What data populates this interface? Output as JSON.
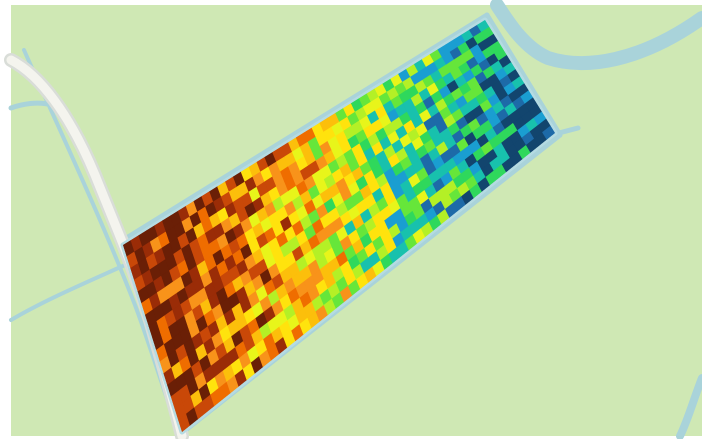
{
  "map": {
    "colors": {
      "background": "#ffffff",
      "land": "#cfe8b4",
      "water": "#a9d3da",
      "water_edge": "#b4d9df",
      "road_casing": "#d9ddd8",
      "road": "#f4f4ee",
      "field_border": "#b5dbe2"
    },
    "field": {
      "label": "yield-heatmap",
      "grid_cols": 46,
      "grid_rows": 16,
      "palette": [
        "#6a1f06",
        "#9a2c07",
        "#c94808",
        "#ef6d00",
        "#f8931a",
        "#fcbf0b",
        "#ffe30d",
        "#e8f51a",
        "#b4f026",
        "#66e63a",
        "#2fd85c",
        "#18c1ad",
        "#1a9ed1",
        "#1d6aa8",
        "#12456e"
      ],
      "seed": 7
    }
  }
}
